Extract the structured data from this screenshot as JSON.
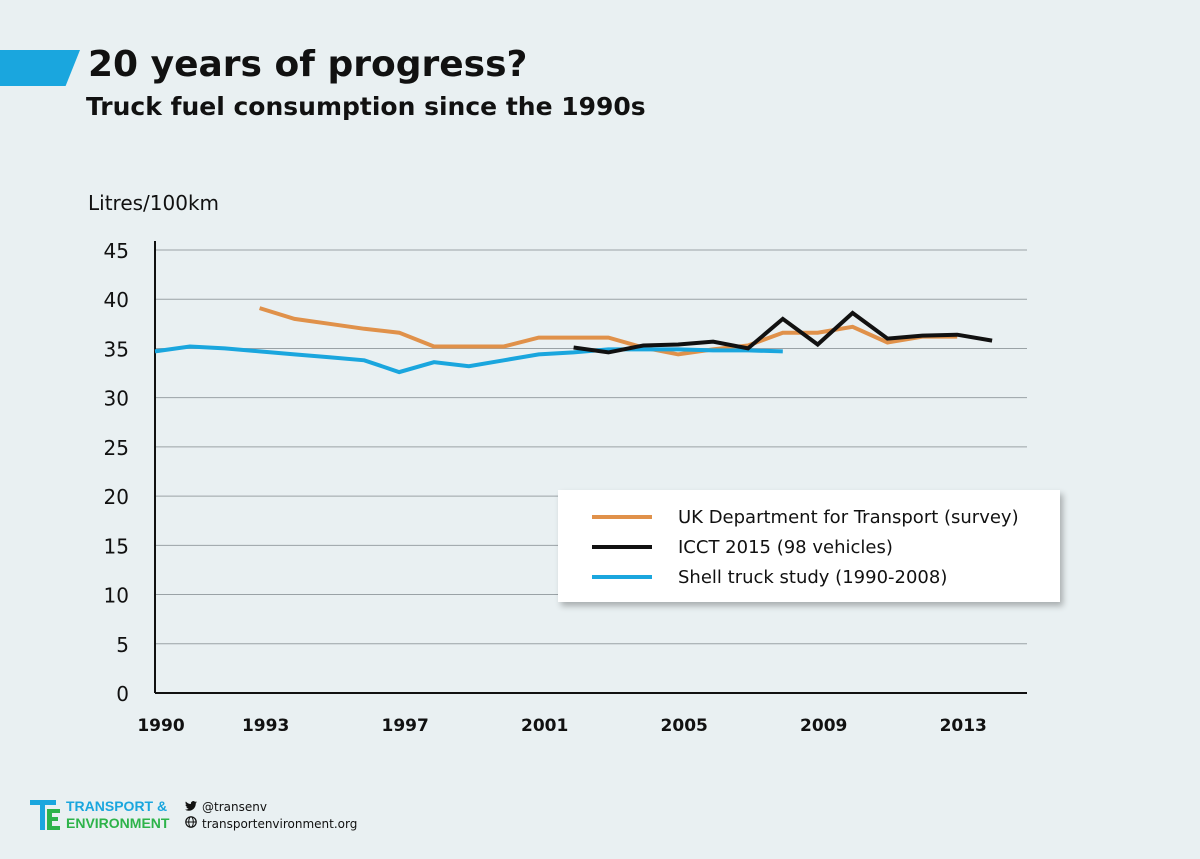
{
  "header": {
    "title": "20 years of progress?",
    "subtitle": "Truck fuel consumption since the 1990s",
    "accent_color": "#1aa6de"
  },
  "chart_data": {
    "type": "line",
    "title": "20 years of progress?",
    "subtitle": "Truck fuel consumption since the 1990s",
    "ylabel": "Litres/100km",
    "xlabel": "",
    "xlim": [
      1990,
      2015
    ],
    "ylim": [
      0,
      45
    ],
    "yticks": [
      0,
      5,
      10,
      15,
      20,
      25,
      30,
      35,
      40,
      45
    ],
    "xticks": [
      1990,
      1993,
      1997,
      2001,
      2005,
      2009,
      2013
    ],
    "grid": true,
    "legend_position": "bottom-right",
    "series": [
      {
        "name": "UK Department for Transport (survey)",
        "color": "#e0914a",
        "x": [
          1993,
          1994,
          1995,
          1996,
          1997,
          1998,
          1999,
          2000,
          2001,
          2002,
          2003,
          2004,
          2005,
          2006,
          2007,
          2008,
          2009,
          2010,
          2011,
          2012,
          2013
        ],
        "y": [
          39.1,
          38.0,
          37.5,
          37.0,
          36.6,
          35.2,
          35.2,
          35.2,
          36.1,
          36.1,
          36.1,
          35.1,
          34.4,
          34.9,
          35.3,
          36.6,
          36.6,
          37.2,
          35.6,
          36.2,
          36.2
        ]
      },
      {
        "name": "ICCT 2015 (98 vehicles)",
        "color": "#111111",
        "x": [
          2002,
          2003,
          2004,
          2005,
          2006,
          2007,
          2008,
          2009,
          2010,
          2011,
          2012,
          2013,
          2014
        ],
        "y": [
          35.1,
          34.6,
          35.3,
          35.4,
          35.7,
          35.0,
          38.0,
          35.4,
          38.6,
          36.0,
          36.3,
          36.4,
          35.8
        ]
      },
      {
        "name": "Shell truck study (1990-2008)",
        "color": "#1aa6de",
        "x": [
          1990,
          1991,
          1992,
          1993,
          1994,
          1995,
          1996,
          1997,
          1998,
          1999,
          2000,
          2001,
          2002,
          2003,
          2004,
          2005,
          2006,
          2007,
          2008
        ],
        "y": [
          34.7,
          35.2,
          35.0,
          34.7,
          34.4,
          34.1,
          33.8,
          32.6,
          33.6,
          33.2,
          33.8,
          34.4,
          34.6,
          34.9,
          34.9,
          34.9,
          34.8,
          34.8,
          34.7
        ]
      }
    ]
  },
  "footer": {
    "brand_line1": "TRANSPORT &",
    "brand_line2": "ENVIRONMENT",
    "twitter": "@transenv",
    "website": "transportenvironment.org",
    "twitter_icon": "twitter-icon",
    "globe_icon": "globe-icon"
  }
}
